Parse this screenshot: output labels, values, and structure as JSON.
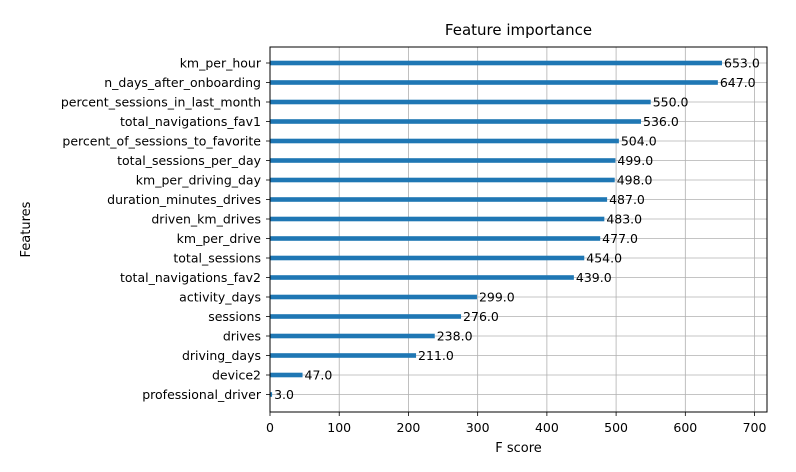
{
  "chart_data": {
    "type": "bar",
    "orientation": "horizontal",
    "title": "Feature importance",
    "xlabel": "F score",
    "ylabel": "Features",
    "xlim": [
      0,
      718
    ],
    "xticks": [
      0,
      100,
      200,
      300,
      400,
      500,
      600,
      700
    ],
    "grid": true,
    "bar_color": "#1f77b4",
    "categories": [
      "km_per_hour",
      "n_days_after_onboarding",
      "percent_sessions_in_last_month",
      "total_navigations_fav1",
      "percent_of_sessions_to_favorite",
      "total_sessions_per_day",
      "km_per_driving_day",
      "duration_minutes_drives",
      "driven_km_drives",
      "km_per_drive",
      "total_sessions",
      "total_navigations_fav2",
      "activity_days",
      "sessions",
      "drives",
      "driving_days",
      "device2",
      "professional_driver"
    ],
    "values": [
      653.0,
      647.0,
      550.0,
      536.0,
      504.0,
      499.0,
      498.0,
      487.0,
      483.0,
      477.0,
      454.0,
      439.0,
      299.0,
      276.0,
      238.0,
      211.0,
      47.0,
      3.0
    ],
    "value_labels": [
      "653.0",
      "647.0",
      "550.0",
      "536.0",
      "504.0",
      "499.0",
      "498.0",
      "487.0",
      "483.0",
      "477.0",
      "454.0",
      "439.0",
      "299.0",
      "276.0",
      "238.0",
      "211.0",
      "47.0",
      "3.0"
    ]
  }
}
